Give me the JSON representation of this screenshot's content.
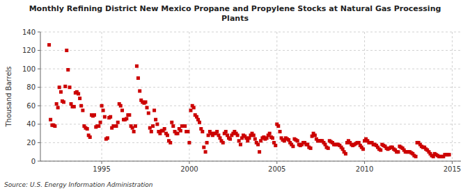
{
  "chart_data": {
    "type": "scatter",
    "title": "Monthly Refining District New Mexico Propane and Propylene Stocks at Natural Gas Processing\nPlants",
    "y_label": "Thousand Barrels",
    "annotations": [
      "Source: U.S. Energy Information Administration"
    ],
    "color": "#cc0000",
    "marker": "square",
    "grid": true,
    "xlim": [
      1991.5,
      2015.5
    ],
    "ylim": [
      0,
      140
    ],
    "xticks": [
      1995,
      2000,
      2005,
      2010,
      2015
    ],
    "yticks": [
      0,
      20,
      40,
      60,
      80,
      100,
      120,
      140
    ],
    "x": [
      1992.0,
      1992.08,
      1992.17,
      1992.25,
      1992.33,
      1992.42,
      1992.5,
      1992.58,
      1992.67,
      1992.75,
      1992.83,
      1992.92,
      1993.0,
      1993.08,
      1993.17,
      1993.25,
      1993.33,
      1993.42,
      1993.5,
      1993.58,
      1993.67,
      1993.75,
      1993.83,
      1993.92,
      1994.0,
      1994.08,
      1994.17,
      1994.25,
      1994.33,
      1994.42,
      1994.5,
      1994.58,
      1994.67,
      1994.75,
      1994.83,
      1994.92,
      1995.0,
      1995.08,
      1995.17,
      1995.25,
      1995.33,
      1995.42,
      1995.5,
      1995.58,
      1995.67,
      1995.75,
      1995.83,
      1995.92,
      1996.0,
      1996.08,
      1996.17,
      1996.25,
      1996.33,
      1996.42,
      1996.5,
      1996.58,
      1996.67,
      1996.75,
      1996.83,
      1996.92,
      1997.0,
      1997.08,
      1997.17,
      1997.25,
      1997.33,
      1997.42,
      1997.5,
      1997.58,
      1997.67,
      1997.75,
      1997.83,
      1997.92,
      1998.0,
      1998.08,
      1998.17,
      1998.25,
      1998.33,
      1998.42,
      1998.5,
      1998.58,
      1998.67,
      1998.75,
      1998.83,
      1998.92,
      1999.0,
      1999.08,
      1999.17,
      1999.25,
      1999.33,
      1999.42,
      1999.5,
      1999.58,
      1999.67,
      1999.75,
      1999.83,
      1999.92,
      2000.0,
      2000.08,
      2000.17,
      2000.25,
      2000.33,
      2000.42,
      2000.5,
      2000.58,
      2000.67,
      2000.75,
      2000.83,
      2000.92,
      2001.0,
      2001.08,
      2001.17,
      2001.25,
      2001.33,
      2001.42,
      2001.5,
      2001.58,
      2001.67,
      2001.75,
      2001.83,
      2001.92,
      2002.0,
      2002.08,
      2002.17,
      2002.25,
      2002.33,
      2002.42,
      2002.5,
      2002.58,
      2002.67,
      2002.75,
      2002.83,
      2002.92,
      2003.0,
      2003.08,
      2003.17,
      2003.25,
      2003.33,
      2003.42,
      2003.5,
      2003.58,
      2003.67,
      2003.75,
      2003.83,
      2003.92,
      2004.0,
      2004.08,
      2004.17,
      2004.25,
      2004.33,
      2004.42,
      2004.5,
      2004.58,
      2004.67,
      2004.75,
      2004.83,
      2004.92,
      2005.0,
      2005.08,
      2005.17,
      2005.25,
      2005.33,
      2005.42,
      2005.5,
      2005.58,
      2005.67,
      2005.75,
      2005.83,
      2005.92,
      2006.0,
      2006.08,
      2006.17,
      2006.25,
      2006.33,
      2006.42,
      2006.5,
      2006.58,
      2006.67,
      2006.75,
      2006.83,
      2006.92,
      2007.0,
      2007.08,
      2007.17,
      2007.25,
      2007.33,
      2007.42,
      2007.5,
      2007.58,
      2007.67,
      2007.75,
      2007.83,
      2007.92,
      2008.0,
      2008.08,
      2008.17,
      2008.25,
      2008.33,
      2008.42,
      2008.5,
      2008.58,
      2008.67,
      2008.75,
      2008.83,
      2008.92,
      2009.0,
      2009.08,
      2009.17,
      2009.25,
      2009.33,
      2009.42,
      2009.5,
      2009.58,
      2009.67,
      2009.75,
      2009.83,
      2009.92,
      2010.0,
      2010.08,
      2010.17,
      2010.25,
      2010.33,
      2010.42,
      2010.5,
      2010.58,
      2010.67,
      2010.75,
      2010.83,
      2010.92,
      2011.0,
      2011.08,
      2011.17,
      2011.25,
      2011.33,
      2011.42,
      2011.5,
      2011.58,
      2011.67,
      2011.75,
      2011.83,
      2011.92,
      2012.0,
      2012.08,
      2012.17,
      2012.25,
      2012.33,
      2012.42,
      2012.5,
      2012.58,
      2012.67,
      2012.75,
      2012.83,
      2012.92,
      2013.0,
      2013.08,
      2013.17,
      2013.25,
      2013.33,
      2013.42,
      2013.5,
      2013.58,
      2013.67,
      2013.75,
      2013.83,
      2013.92,
      2014.0,
      2014.08,
      2014.17,
      2014.25,
      2014.33,
      2014.42,
      2014.5,
      2014.58,
      2014.67,
      2014.75,
      2014.83
    ],
    "values": [
      126,
      45,
      39,
      39,
      38,
      62,
      58,
      80,
      75,
      65,
      64,
      81,
      120,
      99,
      80,
      62,
      59,
      59,
      74,
      75,
      73,
      68,
      60,
      55,
      38,
      36,
      35,
      28,
      26,
      50,
      49,
      50,
      37,
      38,
      38,
      42,
      60,
      55,
      48,
      24,
      25,
      47,
      48,
      36,
      38,
      38,
      38,
      42,
      62,
      60,
      55,
      45,
      45,
      46,
      50,
      50,
      38,
      36,
      32,
      38,
      103,
      90,
      76,
      66,
      64,
      63,
      64,
      58,
      52,
      36,
      32,
      38,
      55,
      45,
      40,
      32,
      30,
      33,
      33,
      35,
      30,
      28,
      22,
      20,
      42,
      38,
      32,
      30,
      30,
      35,
      33,
      38,
      38,
      38,
      32,
      32,
      20,
      55,
      60,
      58,
      50,
      48,
      45,
      42,
      35,
      32,
      15,
      10,
      20,
      28,
      32,
      30,
      28,
      30,
      30,
      32,
      28,
      25,
      22,
      20,
      30,
      32,
      28,
      25,
      24,
      28,
      30,
      32,
      30,
      28,
      22,
      18,
      25,
      28,
      27,
      25,
      22,
      25,
      28,
      30,
      28,
      24,
      20,
      18,
      10,
      22,
      25,
      26,
      24,
      25,
      28,
      30,
      26,
      25,
      20,
      17,
      40,
      38,
      32,
      25,
      23,
      22,
      25,
      24,
      23,
      20,
      18,
      16,
      24,
      23,
      22,
      18,
      17,
      18,
      20,
      20,
      18,
      18,
      15,
      14,
      27,
      30,
      28,
      24,
      22,
      22,
      22,
      22,
      20,
      18,
      15,
      14,
      22,
      21,
      20,
      18,
      18,
      18,
      18,
      17,
      15,
      13,
      10,
      8,
      20,
      22,
      20,
      18,
      17,
      18,
      19,
      20,
      20,
      17,
      15,
      13,
      22,
      24,
      22,
      20,
      20,
      20,
      18,
      18,
      17,
      15,
      13,
      12,
      18,
      17,
      16,
      14,
      13,
      14,
      15,
      15,
      13,
      12,
      10,
      10,
      16,
      15,
      14,
      12,
      10,
      10,
      10,
      10,
      9,
      8,
      6,
      5,
      20,
      20,
      18,
      16,
      15,
      15,
      13,
      12,
      10,
      8,
      6,
      5,
      8,
      7,
      6,
      5,
      5,
      5,
      5,
      7,
      7,
      7,
      7
    ]
  }
}
